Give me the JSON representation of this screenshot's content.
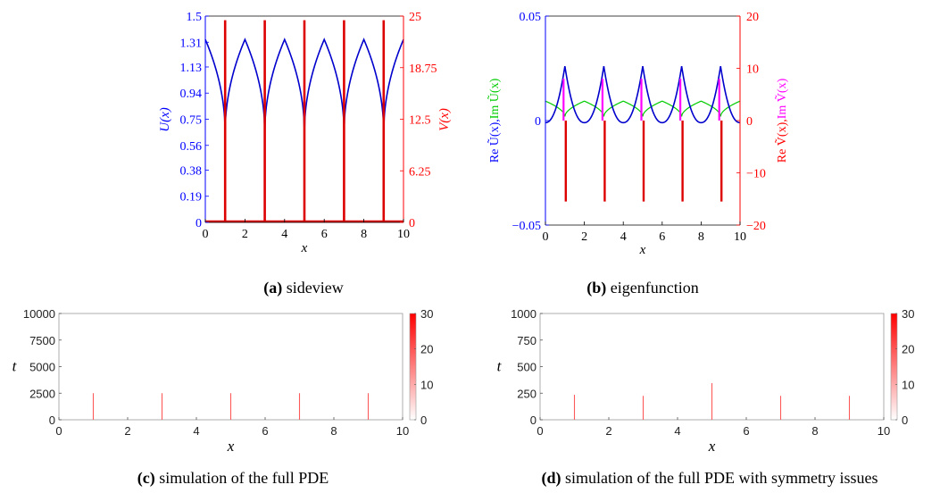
{
  "chart_data": [
    {
      "id": "a",
      "type": "line",
      "caption": {
        "label": "(a)",
        "text": "sideview"
      },
      "xlabel": "x",
      "ylabel_left": "U(x)",
      "ylabel_right": "V(x)",
      "xlim": [
        0,
        10
      ],
      "ylim_left": [
        0,
        1.5
      ],
      "ylim_right": [
        0,
        25
      ],
      "xticks": [
        "0",
        "2",
        "4",
        "6",
        "8",
        "10"
      ],
      "yticks_left": [
        "0",
        "0.19",
        "0.38",
        "0.56",
        "0.75",
        "0.94",
        "1.13",
        "1.31",
        "1.5"
      ],
      "yticks_right": [
        "0",
        "6.25",
        "12.5",
        "18.75",
        "25"
      ],
      "colors": {
        "left": "#0000ff",
        "right": "#ff0000",
        "u_line": "#0000cc",
        "v_line": "#dd0000"
      },
      "series": [
        {
          "name": "U(x)",
          "axis": "left",
          "period": 2,
          "min_at": [
            1,
            3,
            5,
            7,
            9
          ],
          "min": 0.65,
          "max": 1.33,
          "shape": "sqrt-cusp"
        },
        {
          "name": "V(x)",
          "axis": "right",
          "spikes_at": [
            1,
            3,
            5,
            7,
            9
          ],
          "spike_height": 24.5
        }
      ]
    },
    {
      "id": "b",
      "type": "line",
      "caption": {
        "label": "(b)",
        "text": "eigenfunction"
      },
      "xlabel": "x",
      "ylabel_left_parts": [
        {
          "text": "Re Ũ(x)",
          "color": "#0000ff"
        },
        {
          "text": ",",
          "color": "#0000ff"
        },
        {
          "text": "Im Ũ(x)",
          "color": "#00cc00"
        }
      ],
      "ylabel_right_parts": [
        {
          "text": "Re Ṽ(x)",
          "color": "#ff0000"
        },
        {
          "text": ",",
          "color": "#ff0000"
        },
        {
          "text": "Im Ṽ(x)",
          "color": "#ff00ff"
        }
      ],
      "xlim": [
        0,
        10
      ],
      "ylim_left": [
        -0.05,
        0.05
      ],
      "ylim_right": [
        -20,
        20
      ],
      "xticks": [
        "0",
        "2",
        "4",
        "6",
        "8",
        "10"
      ],
      "yticks_left": [
        {
          "v": -0.05,
          "t": "−0.05"
        },
        {
          "v": 0,
          "t": "0"
        },
        {
          "v": 0.05,
          "t": "0.05"
        }
      ],
      "yticks_right": [
        {
          "v": -20,
          "t": "−20"
        },
        {
          "v": -10,
          "t": "−10"
        },
        {
          "v": 0,
          "t": "0"
        },
        {
          "v": 10,
          "t": "10"
        },
        {
          "v": 20,
          "t": "20"
        }
      ],
      "series": [
        {
          "name": "Re Ũ(x)",
          "axis": "left",
          "color": "#0000cc",
          "peaks_at": [
            1,
            3,
            5,
            7,
            9
          ],
          "peak": 0.026,
          "trough": -0.001
        },
        {
          "name": "Im Ũ(x)",
          "axis": "left",
          "color": "#00cc00",
          "dips_at": [
            1,
            3,
            5,
            7,
            9
          ],
          "level": 0.0093,
          "dip": 0.002
        },
        {
          "name": "Re Ṽ(x)",
          "axis": "right",
          "color": "#dd0000",
          "spikes_at": [
            1,
            3,
            5,
            7,
            9
          ],
          "spike": -15.5
        },
        {
          "name": "Im Ṽ(x)",
          "axis": "right",
          "color": "#ff00ff",
          "spikes_at": [
            1,
            3,
            5,
            7,
            9
          ],
          "spike": 8
        }
      ]
    },
    {
      "id": "c",
      "type": "heatmap",
      "caption": {
        "label": "(c)",
        "text": "simulation of the full PDE"
      },
      "xlabel": "x",
      "ylabel": "t",
      "xlim": [
        0,
        10
      ],
      "ylim": [
        0,
        10000
      ],
      "xticks": [
        "0",
        "2",
        "4",
        "6",
        "8",
        "10"
      ],
      "yticks": [
        "0",
        "2500",
        "5000",
        "7500",
        "10000"
      ],
      "colorbar": {
        "min": 0,
        "max": 30,
        "ticks": [
          "0",
          "10",
          "20",
          "30"
        ]
      },
      "spikes": [
        {
          "x": 1,
          "t_max": 2500,
          "value": 30
        },
        {
          "x": 3,
          "t_max": 2500,
          "value": 30
        },
        {
          "x": 5,
          "t_max": 2500,
          "value": 30
        },
        {
          "x": 7,
          "t_max": 2500,
          "value": 30
        },
        {
          "x": 9,
          "t_max": 2500,
          "value": 30
        }
      ]
    },
    {
      "id": "d",
      "type": "heatmap",
      "caption": {
        "label": "(d)",
        "text": "simulation of the full PDE with symmetry issues"
      },
      "xlabel": "x",
      "ylabel": "t",
      "xlim": [
        0,
        10
      ],
      "ylim": [
        0,
        1000
      ],
      "xticks": [
        "0",
        "2",
        "4",
        "6",
        "8",
        "10"
      ],
      "yticks": [
        "0",
        "250",
        "500",
        "750",
        "1000"
      ],
      "colorbar": {
        "min": 0,
        "max": 30,
        "ticks": [
          "0",
          "10",
          "20",
          "30"
        ]
      },
      "spikes": [
        {
          "x": 1,
          "t_max": 235,
          "value": 30
        },
        {
          "x": 3,
          "t_max": 225,
          "value": 30
        },
        {
          "x": 5,
          "t_max": 345,
          "value": 30
        },
        {
          "x": 7,
          "t_max": 225,
          "value": 30
        },
        {
          "x": 9,
          "t_max": 225,
          "value": 30
        }
      ]
    }
  ]
}
